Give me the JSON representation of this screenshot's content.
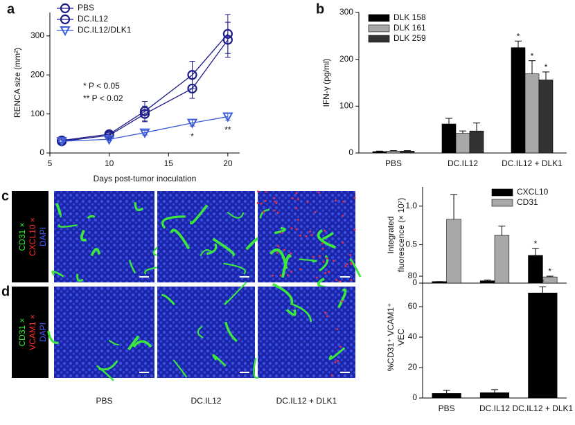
{
  "chart_data": [
    {
      "type": "line",
      "panel": "a",
      "ylabel": "RENCA size (mm²)",
      "xlabel": "Days post-tumor inoculation",
      "x": [
        6,
        10,
        13,
        17,
        20
      ],
      "xlim": [
        5,
        21
      ],
      "xticks": [
        5,
        10,
        15,
        20
      ],
      "ylim": [
        0,
        360
      ],
      "yticks": [
        0,
        100,
        200,
        300
      ],
      "legend": "upper left",
      "notes": [
        "* P < 0.05",
        "** P < 0.02"
      ],
      "series": [
        {
          "name": "PBS",
          "color": "#1c1c8a",
          "marker": "circle",
          "values": [
            32,
            48,
            107,
            200,
            305
          ],
          "errors": [
            5,
            4,
            25,
            35,
            50
          ]
        },
        {
          "name": "DC.IL12",
          "color": "#1c1c8a",
          "marker": "circle",
          "values": [
            30,
            45,
            100,
            165,
            290
          ],
          "errors": [
            4,
            4,
            20,
            25,
            45
          ]
        },
        {
          "name": "DC.IL12/DLK1",
          "color": "#3b5bdb",
          "marker": "triangle-down",
          "values": [
            30,
            35,
            52,
            77,
            93
          ],
          "errors": [
            3,
            4,
            6,
            8,
            9
          ],
          "markers": [
            null,
            null,
            null,
            "*",
            "**"
          ]
        }
      ]
    },
    {
      "type": "bar",
      "panel": "b",
      "ylabel": "IFN-γ (pg/ml)",
      "categories": [
        "PBS",
        "DC.IL12",
        "DC.IL12 + DLK1"
      ],
      "ylim": [
        0,
        300
      ],
      "yticks": [
        0,
        100,
        200,
        300
      ],
      "legend": "upper left",
      "series": [
        {
          "name": "DLK 158",
          "color": "#000000",
          "values": [
            3,
            62,
            225
          ],
          "errors": [
            1,
            12,
            14
          ],
          "markers": [
            null,
            null,
            "*"
          ]
        },
        {
          "name": "DLK 161",
          "color": "#a8a8a8",
          "values": [
            4,
            42,
            169
          ],
          "errors": [
            1,
            5,
            28
          ],
          "markers": [
            null,
            null,
            "*"
          ]
        },
        {
          "name": "DLK 259",
          "color": "#333333",
          "values": [
            4,
            47,
            156
          ],
          "errors": [
            1,
            17,
            17
          ],
          "markers": [
            null,
            null,
            "*"
          ]
        }
      ]
    },
    {
      "type": "bar",
      "ylabel": [
        "Integrated",
        "fluorescence (× 10⁷)"
      ],
      "categories": [
        null,
        null,
        null
      ],
      "ylim": [
        0,
        1.25
      ],
      "yticks": [
        0,
        0.5,
        {
          "value": 1,
          "label": "1.0"
        }
      ],
      "legend": "upper right",
      "series": [
        {
          "name": "CXCL10",
          "color": "#000000",
          "values": [
            0.02,
            0.03,
            0.36
          ],
          "errors": [
            0,
            0.01,
            0.09
          ],
          "markers": [
            null,
            null,
            "*"
          ]
        },
        {
          "name": "CD31",
          "color": "#a8a8a8",
          "values": [
            0.83,
            0.62,
            0.08
          ],
          "errors": [
            0.32,
            0.12,
            0.01
          ],
          "markers": [
            null,
            null,
            "*"
          ]
        }
      ]
    },
    {
      "type": "bar",
      "ylabel": [
        "%CD31⁺ VCAM1⁺",
        "VEC"
      ],
      "categories": [
        "PBS",
        "DC.IL12",
        "DC.IL12 + DLK1"
      ],
      "ylim": [
        0,
        80
      ],
      "yticks": [
        0,
        20,
        40,
        60,
        80
      ],
      "series": [
        {
          "color": "#000000",
          "values": [
            3,
            3.5,
            69
          ],
          "errors": [
            2,
            2,
            4
          ],
          "markers": [
            null,
            null,
            "*"
          ]
        }
      ]
    }
  ],
  "micrographs": {
    "rows": [
      {
        "panel": "c",
        "stain": [
          {
            "text": "CD31 ×",
            "color": "#33ee33"
          },
          {
            "text": "CXCL10 ×",
            "color": "#ff3030"
          },
          {
            "text": "DAPI",
            "color": "#4a5cff"
          }
        ]
      },
      {
        "panel": "d",
        "stain": [
          {
            "text": "CD31 ×",
            "color": "#33ee33"
          },
          {
            "text": "VCAM1 ×",
            "color": "#ff3030"
          },
          {
            "text": "DAPI",
            "color": "#4a5cff"
          }
        ]
      }
    ],
    "columns": [
      "PBS",
      "DC.IL12",
      "DC.IL12 + DLK1"
    ]
  }
}
